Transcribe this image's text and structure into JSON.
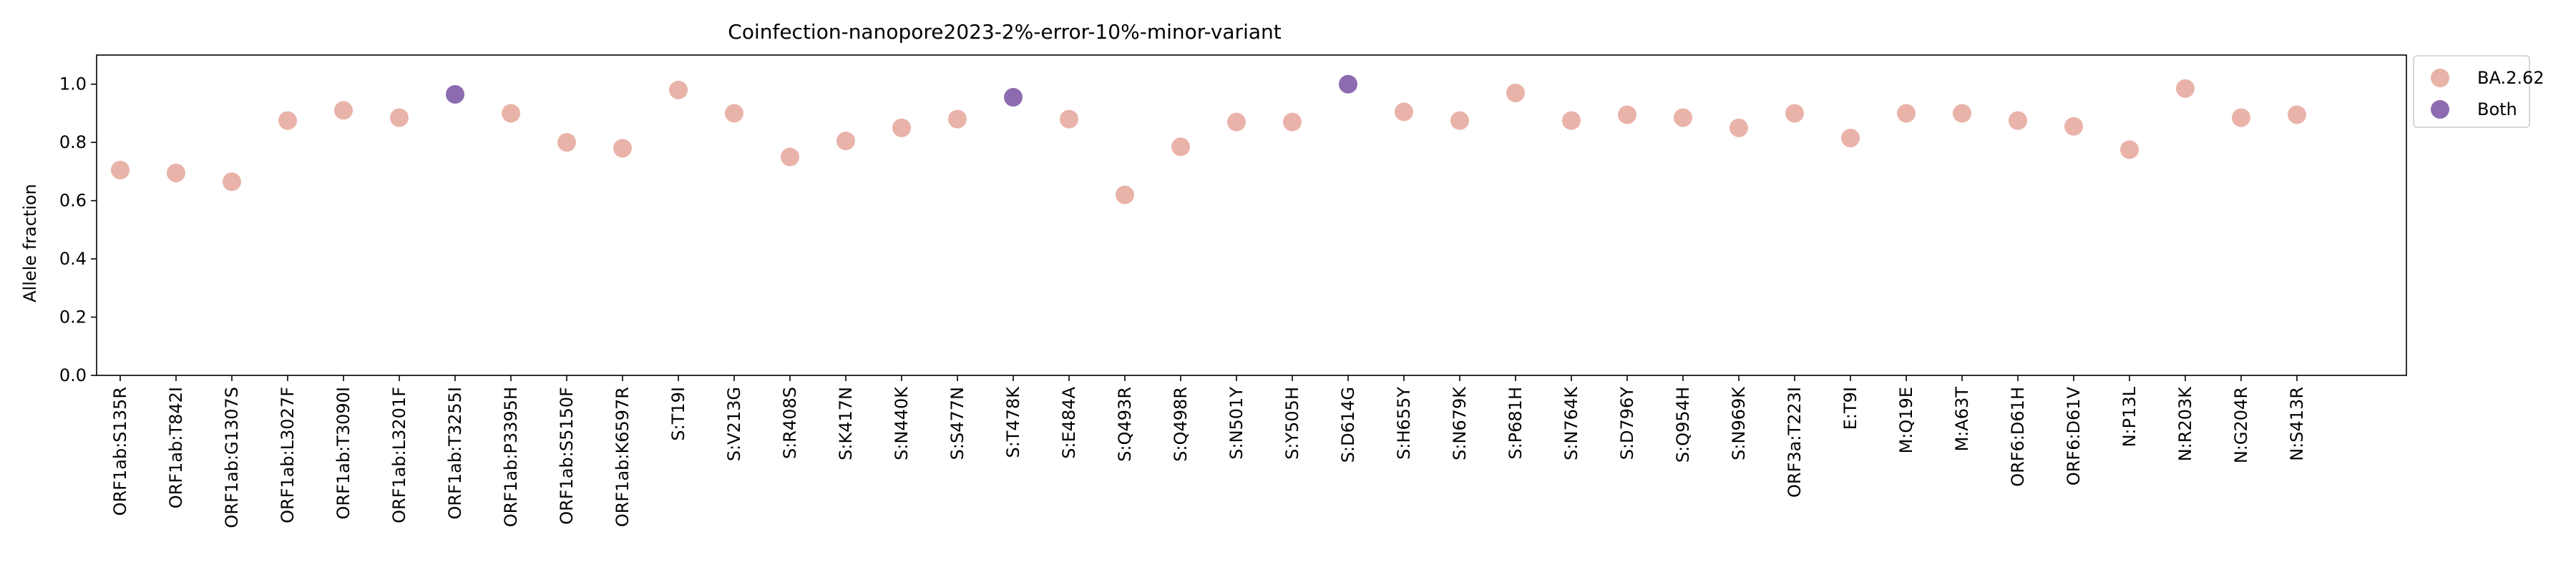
{
  "chart_data": {
    "type": "scatter",
    "title": "Coinfection-nanopore2023-2%-error-10%-minor-variant",
    "xlabel": "",
    "ylabel": "Allele fraction",
    "ylim": [
      0.0,
      1.1
    ],
    "yticks": [
      "0.0",
      "0.2",
      "0.4",
      "0.6",
      "0.8",
      "1.0"
    ],
    "grid": false,
    "legend_position": "outside-top-right",
    "categories": [
      "ORF1ab:S135R",
      "ORF1ab:T842I",
      "ORF1ab:G1307S",
      "ORF1ab:L3027F",
      "ORF1ab:T3090I",
      "ORF1ab:L3201F",
      "ORF1ab:T3255I",
      "ORF1ab:P3395H",
      "ORF1ab:S5150F",
      "ORF1ab:K6597R",
      "S:T19I",
      "S:V213G",
      "S:R408S",
      "S:K417N",
      "S:N440K",
      "S:S477N",
      "S:T478K",
      "S:E484A",
      "S:Q493R",
      "S:Q498R",
      "S:N501Y",
      "S:Y505H",
      "S:D614G",
      "S:H655Y",
      "S:N679K",
      "S:P681H",
      "S:N764K",
      "S:D796Y",
      "S:Q954H",
      "S:N969K",
      "ORF3a:T223I",
      "E:T9I",
      "M:Q19E",
      "M:A63T",
      "ORF6:D61H",
      "ORF6:D61V",
      "N:P13L",
      "N:R203K",
      "N:G204R",
      "N:S413R"
    ],
    "values": [
      0.705,
      0.695,
      0.665,
      0.875,
      0.91,
      0.885,
      0.965,
      0.9,
      0.8,
      0.78,
      0.98,
      0.9,
      0.75,
      0.805,
      0.85,
      0.88,
      0.955,
      0.88,
      0.62,
      0.785,
      0.87,
      0.87,
      1.0,
      0.905,
      0.875,
      0.97,
      0.875,
      0.895,
      0.885,
      0.85,
      0.9,
      0.815,
      0.9,
      0.9,
      0.875,
      0.855,
      0.775,
      0.985,
      0.885,
      0.895
    ],
    "groups": [
      "BA.2.62",
      "BA.2.62",
      "BA.2.62",
      "BA.2.62",
      "BA.2.62",
      "BA.2.62",
      "Both",
      "BA.2.62",
      "BA.2.62",
      "BA.2.62",
      "BA.2.62",
      "BA.2.62",
      "BA.2.62",
      "BA.2.62",
      "BA.2.62",
      "BA.2.62",
      "Both",
      "BA.2.62",
      "BA.2.62",
      "BA.2.62",
      "BA.2.62",
      "BA.2.62",
      "Both",
      "BA.2.62",
      "BA.2.62",
      "BA.2.62",
      "BA.2.62",
      "BA.2.62",
      "BA.2.62",
      "BA.2.62",
      "BA.2.62",
      "BA.2.62",
      "BA.2.62",
      "BA.2.62",
      "BA.2.62",
      "BA.2.62",
      "BA.2.62",
      "BA.2.62",
      "BA.2.62",
      "BA.2.62"
    ],
    "series": [
      {
        "name": "BA.2.62",
        "color": "#e9b3a9"
      },
      {
        "name": "Both",
        "color": "#8c6bb1"
      }
    ]
  }
}
